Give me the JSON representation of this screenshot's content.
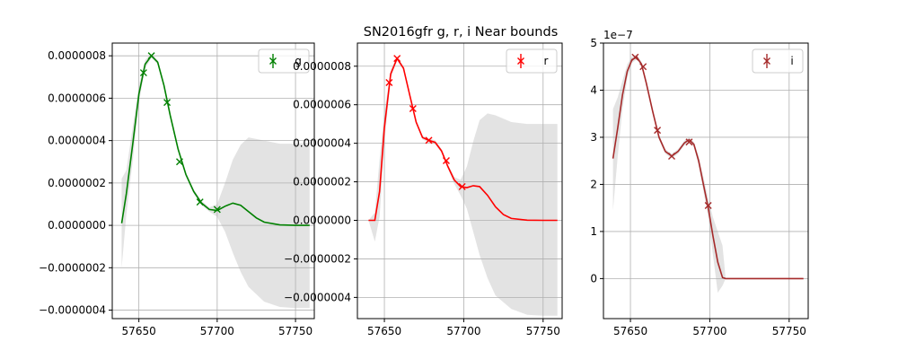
{
  "title": "SN2016gfr  g, r, i Near bounds",
  "chart_data": [
    {
      "type": "line",
      "legend": "g",
      "legend_position": "top-right",
      "grid": true,
      "color": "#008000",
      "band_color": "#c8c8c8",
      "xlim": [
        57633,
        57762
      ],
      "ylim": [
        -4.4e-07,
        8.6e-07
      ],
      "xticks": [
        57650,
        57700,
        57750
      ],
      "yticks": [
        -4e-07,
        -2e-07,
        0,
        2e-07,
        4e-07,
        6e-07,
        8e-07
      ],
      "yticklabels": [
        "−0.0000004",
        "−0.0000002",
        "0.0000000",
        "0.0000002",
        "0.0000004",
        "0.0000006",
        "0.0000008"
      ],
      "points": [
        {
          "x": 57653,
          "y": 7.2e-07
        },
        {
          "x": 57658,
          "y": 8e-07
        },
        {
          "x": 57668,
          "y": 5.8e-07
        },
        {
          "x": 57676,
          "y": 3e-07
        },
        {
          "x": 57689,
          "y": 1.1e-07
        },
        {
          "x": 57700,
          "y": 7.5e-08
        }
      ],
      "curve": [
        [
          57639,
          1e-08
        ],
        [
          57642,
          1.5e-07
        ],
        [
          57646,
          3.8e-07
        ],
        [
          57650,
          6.2e-07
        ],
        [
          57654,
          7.6e-07
        ],
        [
          57658,
          8e-07
        ],
        [
          57662,
          7.7e-07
        ],
        [
          57666,
          6.6e-07
        ],
        [
          57670,
          5.2e-07
        ],
        [
          57675,
          3.6e-07
        ],
        [
          57680,
          2.4e-07
        ],
        [
          57685,
          1.6e-07
        ],
        [
          57690,
          1.05e-07
        ],
        [
          57695,
          7.5e-08
        ],
        [
          57700,
          7e-08
        ],
        [
          57705,
          9e-08
        ],
        [
          57710,
          1.05e-07
        ],
        [
          57715,
          9.5e-08
        ],
        [
          57720,
          6.5e-08
        ],
        [
          57725,
          3.5e-08
        ],
        [
          57730,
          1.5e-08
        ],
        [
          57740,
          2e-09
        ],
        [
          57750,
          0.0
        ],
        [
          57759,
          0.0
        ]
      ],
      "band_upper": [
        [
          57639,
          2.2e-07
        ],
        [
          57642,
          2.6e-07
        ],
        [
          57646,
          4.6e-07
        ],
        [
          57650,
          6.6e-07
        ],
        [
          57654,
          7.8e-07
        ],
        [
          57658,
          8.1e-07
        ],
        [
          57662,
          7.8e-07
        ],
        [
          57666,
          6.7e-07
        ],
        [
          57670,
          5.3e-07
        ],
        [
          57675,
          3.7e-07
        ],
        [
          57680,
          2.5e-07
        ],
        [
          57685,
          1.7e-07
        ],
        [
          57690,
          1.15e-07
        ],
        [
          57695,
          8.5e-08
        ],
        [
          57700,
          1e-07
        ],
        [
          57705,
          2e-07
        ],
        [
          57710,
          3.1e-07
        ],
        [
          57715,
          3.8e-07
        ],
        [
          57720,
          4.15e-07
        ],
        [
          57730,
          4e-07
        ],
        [
          57740,
          3.85e-07
        ],
        [
          57750,
          3.85e-07
        ],
        [
          57759,
          3.9e-07
        ]
      ],
      "band_lower": [
        [
          57639,
          -2e-07
        ],
        [
          57642,
          5e-08
        ],
        [
          57646,
          3e-07
        ],
        [
          57650,
          5.8e-07
        ],
        [
          57654,
          7.4e-07
        ],
        [
          57658,
          7.9e-07
        ],
        [
          57662,
          7.6e-07
        ],
        [
          57666,
          6.5e-07
        ],
        [
          57670,
          5.1e-07
        ],
        [
          57675,
          3.5e-07
        ],
        [
          57680,
          2.3e-07
        ],
        [
          57685,
          1.5e-07
        ],
        [
          57690,
          9.5e-08
        ],
        [
          57695,
          6.5e-08
        ],
        [
          57700,
          4e-08
        ],
        [
          57705,
          -3e-08
        ],
        [
          57710,
          -1.3e-07
        ],
        [
          57715,
          -2.2e-07
        ],
        [
          57720,
          -2.9e-07
        ],
        [
          57730,
          -3.6e-07
        ],
        [
          57740,
          -3.85e-07
        ],
        [
          57750,
          -3.9e-07
        ],
        [
          57759,
          -3.9e-07
        ]
      ]
    },
    {
      "type": "line",
      "legend": "r",
      "legend_position": "top-right",
      "grid": true,
      "color": "#ff0000",
      "band_color": "#c8c8c8",
      "xlim": [
        57633,
        57762
      ],
      "ylim": [
        -5.1e-07,
        9.2e-07
      ],
      "xticks": [
        57650,
        57700,
        57750
      ],
      "yticks": [
        -4e-07,
        -2e-07,
        0,
        2e-07,
        4e-07,
        6e-07,
        8e-07
      ],
      "yticklabels": [
        "−0.0000004",
        "−0.0000002",
        "0.0000000",
        "0.0000002",
        "0.0000004",
        "0.0000006",
        "0.0000008"
      ],
      "points": [
        {
          "x": 57653,
          "y": 7.15e-07
        },
        {
          "x": 57658,
          "y": 8.4e-07
        },
        {
          "x": 57668,
          "y": 5.8e-07
        },
        {
          "x": 57678,
          "y": 4.15e-07
        },
        {
          "x": 57689,
          "y": 3.1e-07
        },
        {
          "x": 57699,
          "y": 1.75e-07
        }
      ],
      "curve": [
        [
          57640,
          0.0
        ],
        [
          57644,
          0.0
        ],
        [
          57647,
          1.5e-07
        ],
        [
          57650,
          4.8e-07
        ],
        [
          57654,
          7.6e-07
        ],
        [
          57658,
          8.4e-07
        ],
        [
          57662,
          7.9e-07
        ],
        [
          57666,
          6.5e-07
        ],
        [
          57670,
          5.1e-07
        ],
        [
          57674,
          4.3e-07
        ],
        [
          57678,
          4.15e-07
        ],
        [
          57682,
          4.05e-07
        ],
        [
          57686,
          3.6e-07
        ],
        [
          57690,
          2.8e-07
        ],
        [
          57694,
          2.1e-07
        ],
        [
          57698,
          1.75e-07
        ],
        [
          57702,
          1.7e-07
        ],
        [
          57706,
          1.8e-07
        ],
        [
          57710,
          1.75e-07
        ],
        [
          57715,
          1.3e-07
        ],
        [
          57720,
          7e-08
        ],
        [
          57725,
          3e-08
        ],
        [
          57730,
          1e-08
        ],
        [
          57740,
          1e-09
        ],
        [
          57750,
          0.0
        ],
        [
          57759,
          0.0
        ]
      ],
      "band_upper": [
        [
          57640,
          0.0
        ],
        [
          57644,
          4e-08
        ],
        [
          57647,
          3.2e-07
        ],
        [
          57650,
          5.6e-07
        ],
        [
          57654,
          7.8e-07
        ],
        [
          57658,
          8.5e-07
        ],
        [
          57662,
          8e-07
        ],
        [
          57666,
          6.6e-07
        ],
        [
          57670,
          5.2e-07
        ],
        [
          57674,
          4.4e-07
        ],
        [
          57678,
          4.25e-07
        ],
        [
          57682,
          4.15e-07
        ],
        [
          57686,
          3.7e-07
        ],
        [
          57690,
          2.9e-07
        ],
        [
          57694,
          2.25e-07
        ],
        [
          57698,
          2.1e-07
        ],
        [
          57702,
          2.8e-07
        ],
        [
          57706,
          4.1e-07
        ],
        [
          57710,
          5.2e-07
        ],
        [
          57715,
          5.55e-07
        ],
        [
          57720,
          5.45e-07
        ],
        [
          57730,
          5.1e-07
        ],
        [
          57740,
          5e-07
        ],
        [
          57750,
          5e-07
        ],
        [
          57759,
          5e-07
        ]
      ],
      "band_lower": [
        [
          57640,
          0.0
        ],
        [
          57644,
          -1.1e-07
        ],
        [
          57647,
          2e-08
        ],
        [
          57650,
          4e-07
        ],
        [
          57654,
          7.4e-07
        ],
        [
          57658,
          8.3e-07
        ],
        [
          57662,
          7.8e-07
        ],
        [
          57666,
          6.4e-07
        ],
        [
          57670,
          5e-07
        ],
        [
          57674,
          4.2e-07
        ],
        [
          57678,
          4.05e-07
        ],
        [
          57682,
          3.95e-07
        ],
        [
          57686,
          3.5e-07
        ],
        [
          57690,
          2.7e-07
        ],
        [
          57694,
          1.9e-07
        ],
        [
          57698,
          1.3e-07
        ],
        [
          57702,
          6e-08
        ],
        [
          57706,
          -6e-08
        ],
        [
          57710,
          -1.8e-07
        ],
        [
          57715,
          -3e-07
        ],
        [
          57720,
          -3.9e-07
        ],
        [
          57730,
          -4.6e-07
        ],
        [
          57740,
          -4.9e-07
        ],
        [
          57750,
          -4.95e-07
        ],
        [
          57759,
          -4.95e-07
        ]
      ]
    },
    {
      "type": "line",
      "legend": "i",
      "legend_position": "top-right",
      "grid": true,
      "color": "#a52a2a",
      "band_color": "#c8c8c8",
      "offset_text": "1e−7",
      "xlim": [
        57633,
        57762
      ],
      "ylim": [
        -8.5e-08,
        5e-07
      ],
      "xticks": [
        57650,
        57700,
        57750
      ],
      "yticks": [
        0,
        1e-07,
        2e-07,
        3e-07,
        4e-07,
        5e-07
      ],
      "yticklabels": [
        "0",
        "1",
        "2",
        "3",
        "4",
        "5"
      ],
      "points": [
        {
          "x": 57653,
          "y": 4.7e-07
        },
        {
          "x": 57658,
          "y": 4.5e-07
        },
        {
          "x": 57667,
          "y": 3.15e-07
        },
        {
          "x": 57676,
          "y": 2.6e-07
        },
        {
          "x": 57687,
          "y": 2.9e-07
        },
        {
          "x": 57699,
          "y": 1.55e-07
        }
      ],
      "curve": [
        [
          57639,
          2.55e-07
        ],
        [
          57642,
          3.2e-07
        ],
        [
          57645,
          3.9e-07
        ],
        [
          57648,
          4.4e-07
        ],
        [
          57651,
          4.65e-07
        ],
        [
          57654,
          4.7e-07
        ],
        [
          57657,
          4.55e-07
        ],
        [
          57660,
          4.15e-07
        ],
        [
          57664,
          3.55e-07
        ],
        [
          57668,
          3e-07
        ],
        [
          57672,
          2.7e-07
        ],
        [
          57676,
          2.6e-07
        ],
        [
          57680,
          2.7e-07
        ],
        [
          57684,
          2.88e-07
        ],
        [
          57687,
          2.95e-07
        ],
        [
          57690,
          2.85e-07
        ],
        [
          57693,
          2.5e-07
        ],
        [
          57696,
          2e-07
        ],
        [
          57699,
          1.5e-07
        ],
        [
          57702,
          9e-08
        ],
        [
          57705,
          3.5e-08
        ],
        [
          57708,
          2e-09
        ],
        [
          57710,
          0.0
        ],
        [
          57730,
          0.0
        ],
        [
          57759,
          0.0
        ]
      ],
      "band_upper": [
        [
          57639,
          3.6e-07
        ],
        [
          57642,
          3.85e-07
        ],
        [
          57645,
          4.2e-07
        ],
        [
          57648,
          4.55e-07
        ],
        [
          57651,
          4.72e-07
        ],
        [
          57654,
          4.75e-07
        ],
        [
          57657,
          4.6e-07
        ],
        [
          57660,
          4.2e-07
        ],
        [
          57664,
          3.6e-07
        ],
        [
          57668,
          3.05e-07
        ],
        [
          57672,
          2.75e-07
        ],
        [
          57676,
          2.65e-07
        ],
        [
          57680,
          2.75e-07
        ],
        [
          57684,
          2.93e-07
        ],
        [
          57687,
          3e-07
        ],
        [
          57690,
          2.9e-07
        ],
        [
          57693,
          2.6e-07
        ],
        [
          57696,
          2.15e-07
        ],
        [
          57699,
          1.7e-07
        ],
        [
          57702,
          1.3e-07
        ],
        [
          57705,
          1e-07
        ],
        [
          57708,
          7e-08
        ],
        [
          57710,
          0.0
        ],
        [
          57730,
          0.0
        ],
        [
          57759,
          0.0
        ]
      ],
      "band_lower": [
        [
          57639,
          1.45e-07
        ],
        [
          57642,
          2.6e-07
        ],
        [
          57645,
          3.6e-07
        ],
        [
          57648,
          4.25e-07
        ],
        [
          57651,
          4.58e-07
        ],
        [
          57654,
          4.65e-07
        ],
        [
          57657,
          4.5e-07
        ],
        [
          57660,
          4.1e-07
        ],
        [
          57664,
          3.5e-07
        ],
        [
          57668,
          2.95e-07
        ],
        [
          57672,
          2.65e-07
        ],
        [
          57676,
          2.55e-07
        ],
        [
          57680,
          2.65e-07
        ],
        [
          57684,
          2.83e-07
        ],
        [
          57687,
          2.9e-07
        ],
        [
          57690,
          2.8e-07
        ],
        [
          57693,
          2.4e-07
        ],
        [
          57696,
          1.85e-07
        ],
        [
          57699,
          1.3e-07
        ],
        [
          57702,
          5e-08
        ],
        [
          57705,
          -3e-08
        ],
        [
          57708,
          -1.5e-08
        ],
        [
          57710,
          0.0
        ],
        [
          57730,
          0.0
        ],
        [
          57759,
          0.0
        ]
      ]
    }
  ]
}
